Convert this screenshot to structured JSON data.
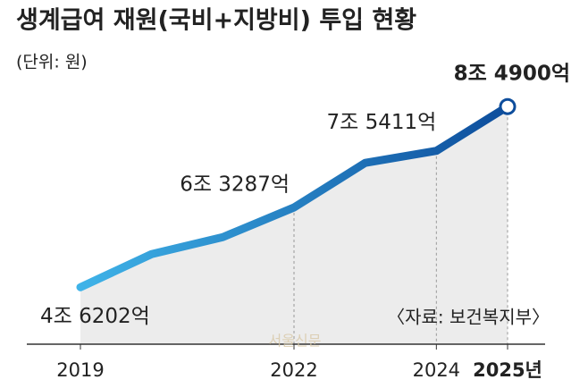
{
  "chart_data": {
    "type": "line",
    "title": "생계급여 재원(국비+지방비) 투입 현황",
    "subtitle": "(단위: 원)",
    "source": "〈자료: 보건복지부〉",
    "watermark": "서울신문",
    "categories": [
      "2019",
      null,
      null,
      "2022",
      null,
      "2024",
      "2025년"
    ],
    "values": [
      46202,
      53290,
      56930,
      63287,
      72834,
      75411,
      84900
    ],
    "value_labels": [
      "4조 6202억",
      null,
      null,
      "6조 3287억",
      null,
      "7조 5411억",
      "8조 4900억"
    ],
    "color_start": "#3fb3e8",
    "color_end": "#0d4d9c",
    "area_color": "#ececec",
    "ylim": [
      34000,
      88000
    ]
  }
}
